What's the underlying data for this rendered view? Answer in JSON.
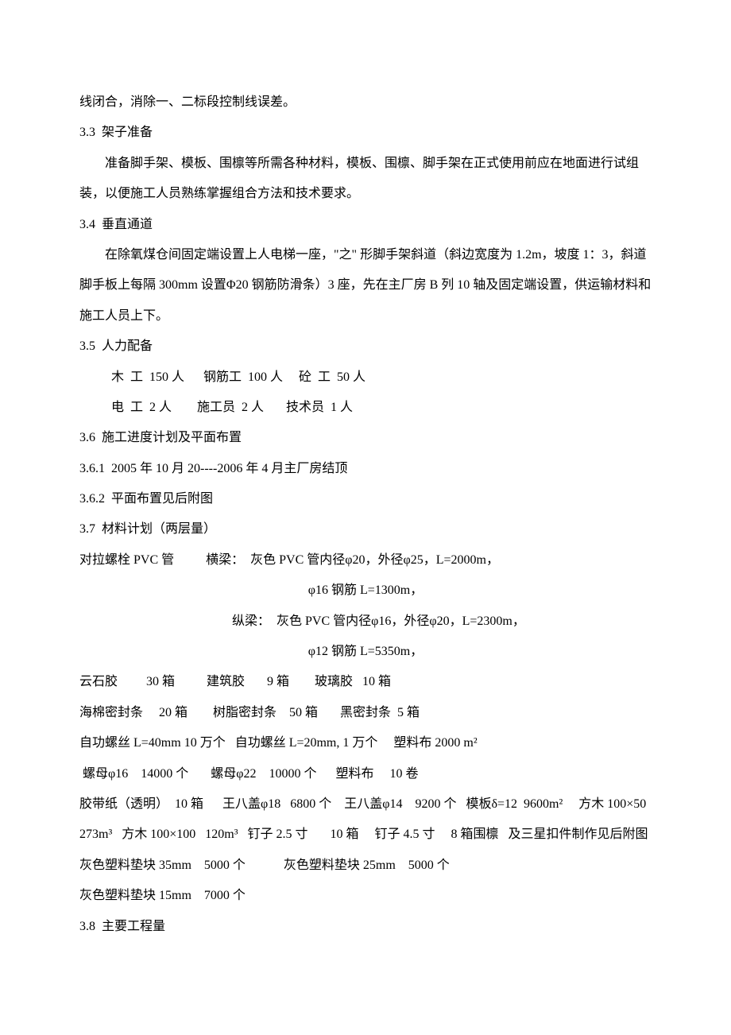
{
  "document": {
    "font_family": "SimSun",
    "base_fontsize": 16,
    "line_height": 2.4,
    "text_color": "#000000",
    "background_color": "#ffffff",
    "lines": {
      "l01": "线闭合，消除一、二标段控制线误差。",
      "l02": "3.3  架子准备",
      "l03": "准备脚手架、模板、围檩等所需各种材料，模板、围檩、脚手架在正式使用前应在地面进行试组装，以便施工人员熟练掌握组合方法和技术要求。",
      "l04": "3.4  垂直通道",
      "l05": "在除氧煤仓间固定端设置上人电梯一座，\"之\" 形脚手架斜道（斜边宽度为 1.2m，坡度 1：3，斜道脚手板上每隔 300mm 设置Φ20 钢筋防滑条）3 座，先在主厂房 B 列 10 轴及固定端设置，供运输材料和施工人员上下。",
      "l06": "3.5  人力配备",
      "l07": "木  工  150 人      钢筋工  100 人     砼  工  50 人",
      "l08": "电  工  2 人        施工员  2 人       技术员  1 人",
      "l09": "3.6  施工进度计划及平面布置",
      "l10": "3.6.1  2005 年 10 月 20----2006 年 4 月主厂房结顶",
      "l11": "3.6.2  平面布置见后附图",
      "l12": "3.7  材料计划（两层量）",
      "l13": "对拉螺栓 PVC 管          横梁：  灰色 PVC 管内径φ20，外径φ25，L=2000m，",
      "l14": "φ16 钢筋 L=1300m，",
      "l15": "纵梁：  灰色 PVC 管内径φ16，外径φ20，L=2300m，",
      "l16": "φ12 钢筋 L=5350m，",
      "l17": "云石胶         30 箱          建筑胶       9 箱        玻璃胶   10 箱",
      "l18": "海棉密封条     20 箱        树脂密封条    50 箱       黑密封条  5 箱",
      "l19": "自功螺丝 L=40mm 10 万个   自功螺丝 L=20mm, 1 万个     塑料布 2000 m²",
      "l20": " 螺母φ16    14000 个       螺母φ22    10000 个      塑料布     10 卷",
      "l21": "胶带纸（透明）  10 箱      王八盖φ18   6800 个    王八盖φ14    9200 个   模板δ=12  9600m²     方木 100×50   273m³   方木 100×100   120m³   钉子 2.5 寸       10 箱     钉子 4.5 寸     8 箱围檩   及三星扣件制作见后附图",
      "l22": "灰色塑料垫块 35mm    5000 个            灰色塑料垫块 25mm    5000 个",
      "l23": "灰色塑料垫块 15mm    7000 个",
      "l24": "3.8  主要工程量"
    }
  }
}
